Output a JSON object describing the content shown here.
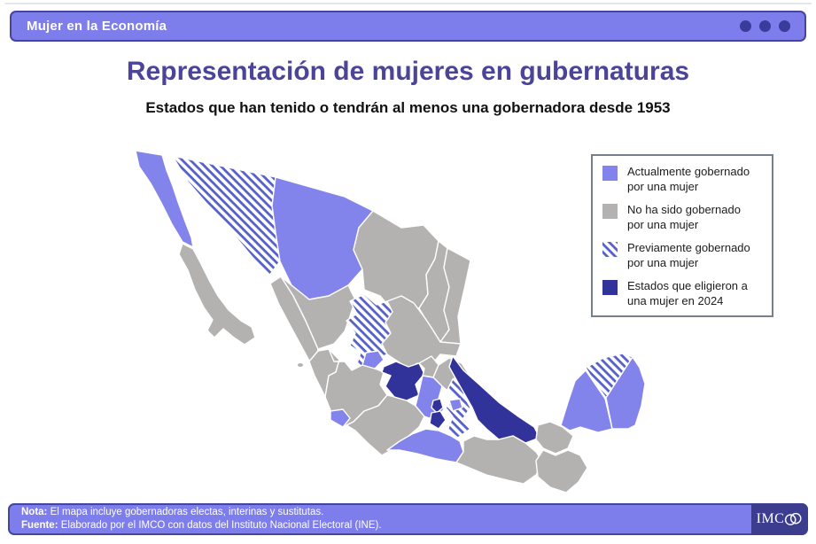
{
  "topbar": {
    "label": "Mujer en la Economía"
  },
  "header": {
    "title": "Representación de mujeres en gubernaturas",
    "subtitle": "Estados que han tenido o tendrán al menos una gobernadora desde 1953"
  },
  "legend": {
    "items": [
      {
        "key": "current",
        "line1": "Actualmente gobernado",
        "line2": "por una mujer"
      },
      {
        "key": "none",
        "line1": "No ha sido gobernado",
        "line2": "por una mujer"
      },
      {
        "key": "previous",
        "line1": "Previamente gobernado",
        "line2": "por una mujer"
      },
      {
        "key": "elected2024",
        "line1": "Estados que eligieron a",
        "line2": "una mujer en 2024"
      }
    ]
  },
  "colors": {
    "current": "#8383EC",
    "none": "#B4B1B1",
    "previous_stripe": "#5560C8",
    "elected2024": "#32329B",
    "bar_fill": "#7D7DEB",
    "bar_border": "#45459E",
    "title_text": "#4B4499",
    "imco_box": "#3D3D8F",
    "window_dot": "#3B3B9B",
    "legend_border": "#76808C"
  },
  "map": {
    "state_categories": {
      "baja_california": "current",
      "baja_california_sur": "none",
      "sonora": "previous",
      "chihuahua": "current",
      "coahuila": "none",
      "nuevo_leon": "none",
      "tamaulipas": "none",
      "sinaloa": "none",
      "durango": "none",
      "zacatecas": "previous",
      "san_luis_potosi": "none",
      "nayarit": "none",
      "jalisco": "none",
      "michoacan": "none",
      "colima": "current",
      "aguascalientes": "current",
      "guanajuato": "elected2024",
      "queretaro": "none",
      "hidalgo": "none",
      "mexico_state": "current",
      "puebla": "previous",
      "tlaxcala": "current",
      "veracruz": "elected2024",
      "cdmx": "elected2024",
      "morelos": "elected2024",
      "guerrero": "current",
      "oaxaca": "none",
      "tabasco": "none",
      "chiapas": "none",
      "campeche": "current",
      "yucatan": "previous",
      "quintana_roo": "current"
    }
  },
  "footer": {
    "nota_label": "Nota:",
    "nota_text": " El mapa incluye gobernadoras electas, interinas y sustitutas.",
    "fuente_label": "Fuente:",
    "fuente_text": " Elaborado por el IMCO con datos del Instituto Nacional Electoral (INE).",
    "logo": "IMCO"
  }
}
